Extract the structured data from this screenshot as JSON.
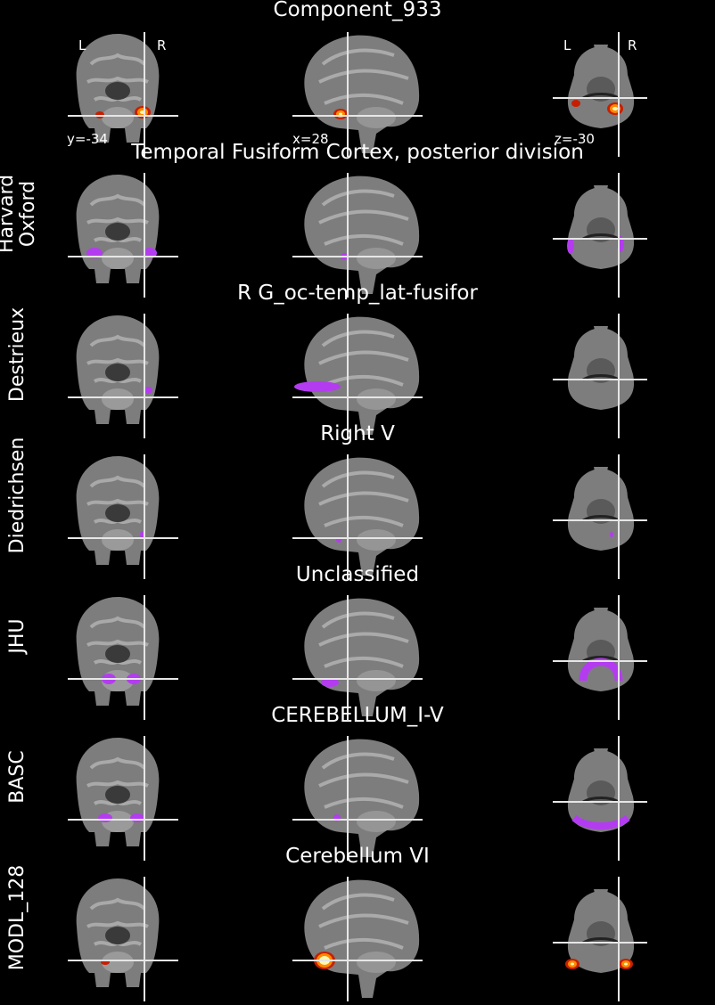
{
  "rows": [
    {
      "title": "Component_933",
      "side_label": "",
      "kind": "heat",
      "overlay_color": "#ff5a00"
    },
    {
      "title": "Temporal Fusiform Cortex, posterior division",
      "side_label": "Harvard\nOxford",
      "kind": "atlas",
      "overlay_color": "#b43cf0"
    },
    {
      "title": "R G_oc-temp_lat-fusifor",
      "side_label": "Destrieux",
      "kind": "atlas",
      "overlay_color": "#b43cf0"
    },
    {
      "title": "Right V",
      "side_label": "Diedrichsen",
      "kind": "atlas",
      "overlay_color": "#b43cf0"
    },
    {
      "title": "Unclassified",
      "side_label": "JHU",
      "kind": "atlas",
      "overlay_color": "#b43cf0"
    },
    {
      "title": "CEREBELLUM_I-V",
      "side_label": "BASC",
      "kind": "atlas",
      "overlay_color": "#b43cf0"
    },
    {
      "title": "Cerebellum VI",
      "side_label": "MODL_128",
      "kind": "heat",
      "overlay_color": "#ff5a00"
    }
  ],
  "coords": {
    "coronal": "y=-34",
    "sagittal": "x=28",
    "axial": "z=-30"
  },
  "orientation": {
    "left": "L",
    "right": "R"
  }
}
